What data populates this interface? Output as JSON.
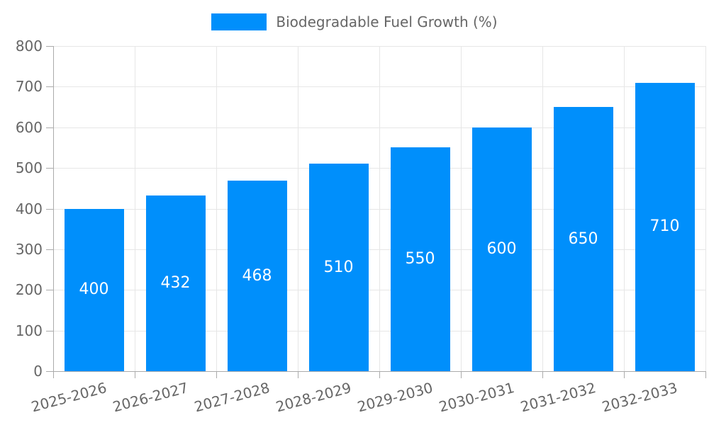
{
  "legend": {
    "label": "Biodegradable Fuel Growth (%)"
  },
  "colors": {
    "bar": "#008FFB",
    "grid": "#e6e6e6",
    "axis": "#ababab",
    "tick_label": "#666666",
    "legend_text": "#666666",
    "value_label": "#ffffff",
    "background": "#ffffff"
  },
  "chart_data": {
    "type": "bar",
    "title": "",
    "xlabel": "",
    "ylabel": "",
    "categories": [
      "2025-2026",
      "2026-2027",
      "2027-2028",
      "2028-2029",
      "2029-2030",
      "2030-2031",
      "2031-2032",
      "2032-2033"
    ],
    "series": [
      {
        "name": "Biodegradable Fuel Growth (%)",
        "values": [
          400,
          432,
          468,
          510,
          550,
          600,
          650,
          710
        ]
      }
    ],
    "data_labels": [
      400,
      432,
      468,
      510,
      550,
      600,
      650,
      710
    ],
    "ylim": [
      0,
      800
    ],
    "ytick_step": 100,
    "yticks": [
      0,
      100,
      200,
      300,
      400,
      500,
      600,
      700,
      800
    ],
    "grid": "both",
    "legend_position": "top",
    "x_label_rotation_deg": -15
  }
}
